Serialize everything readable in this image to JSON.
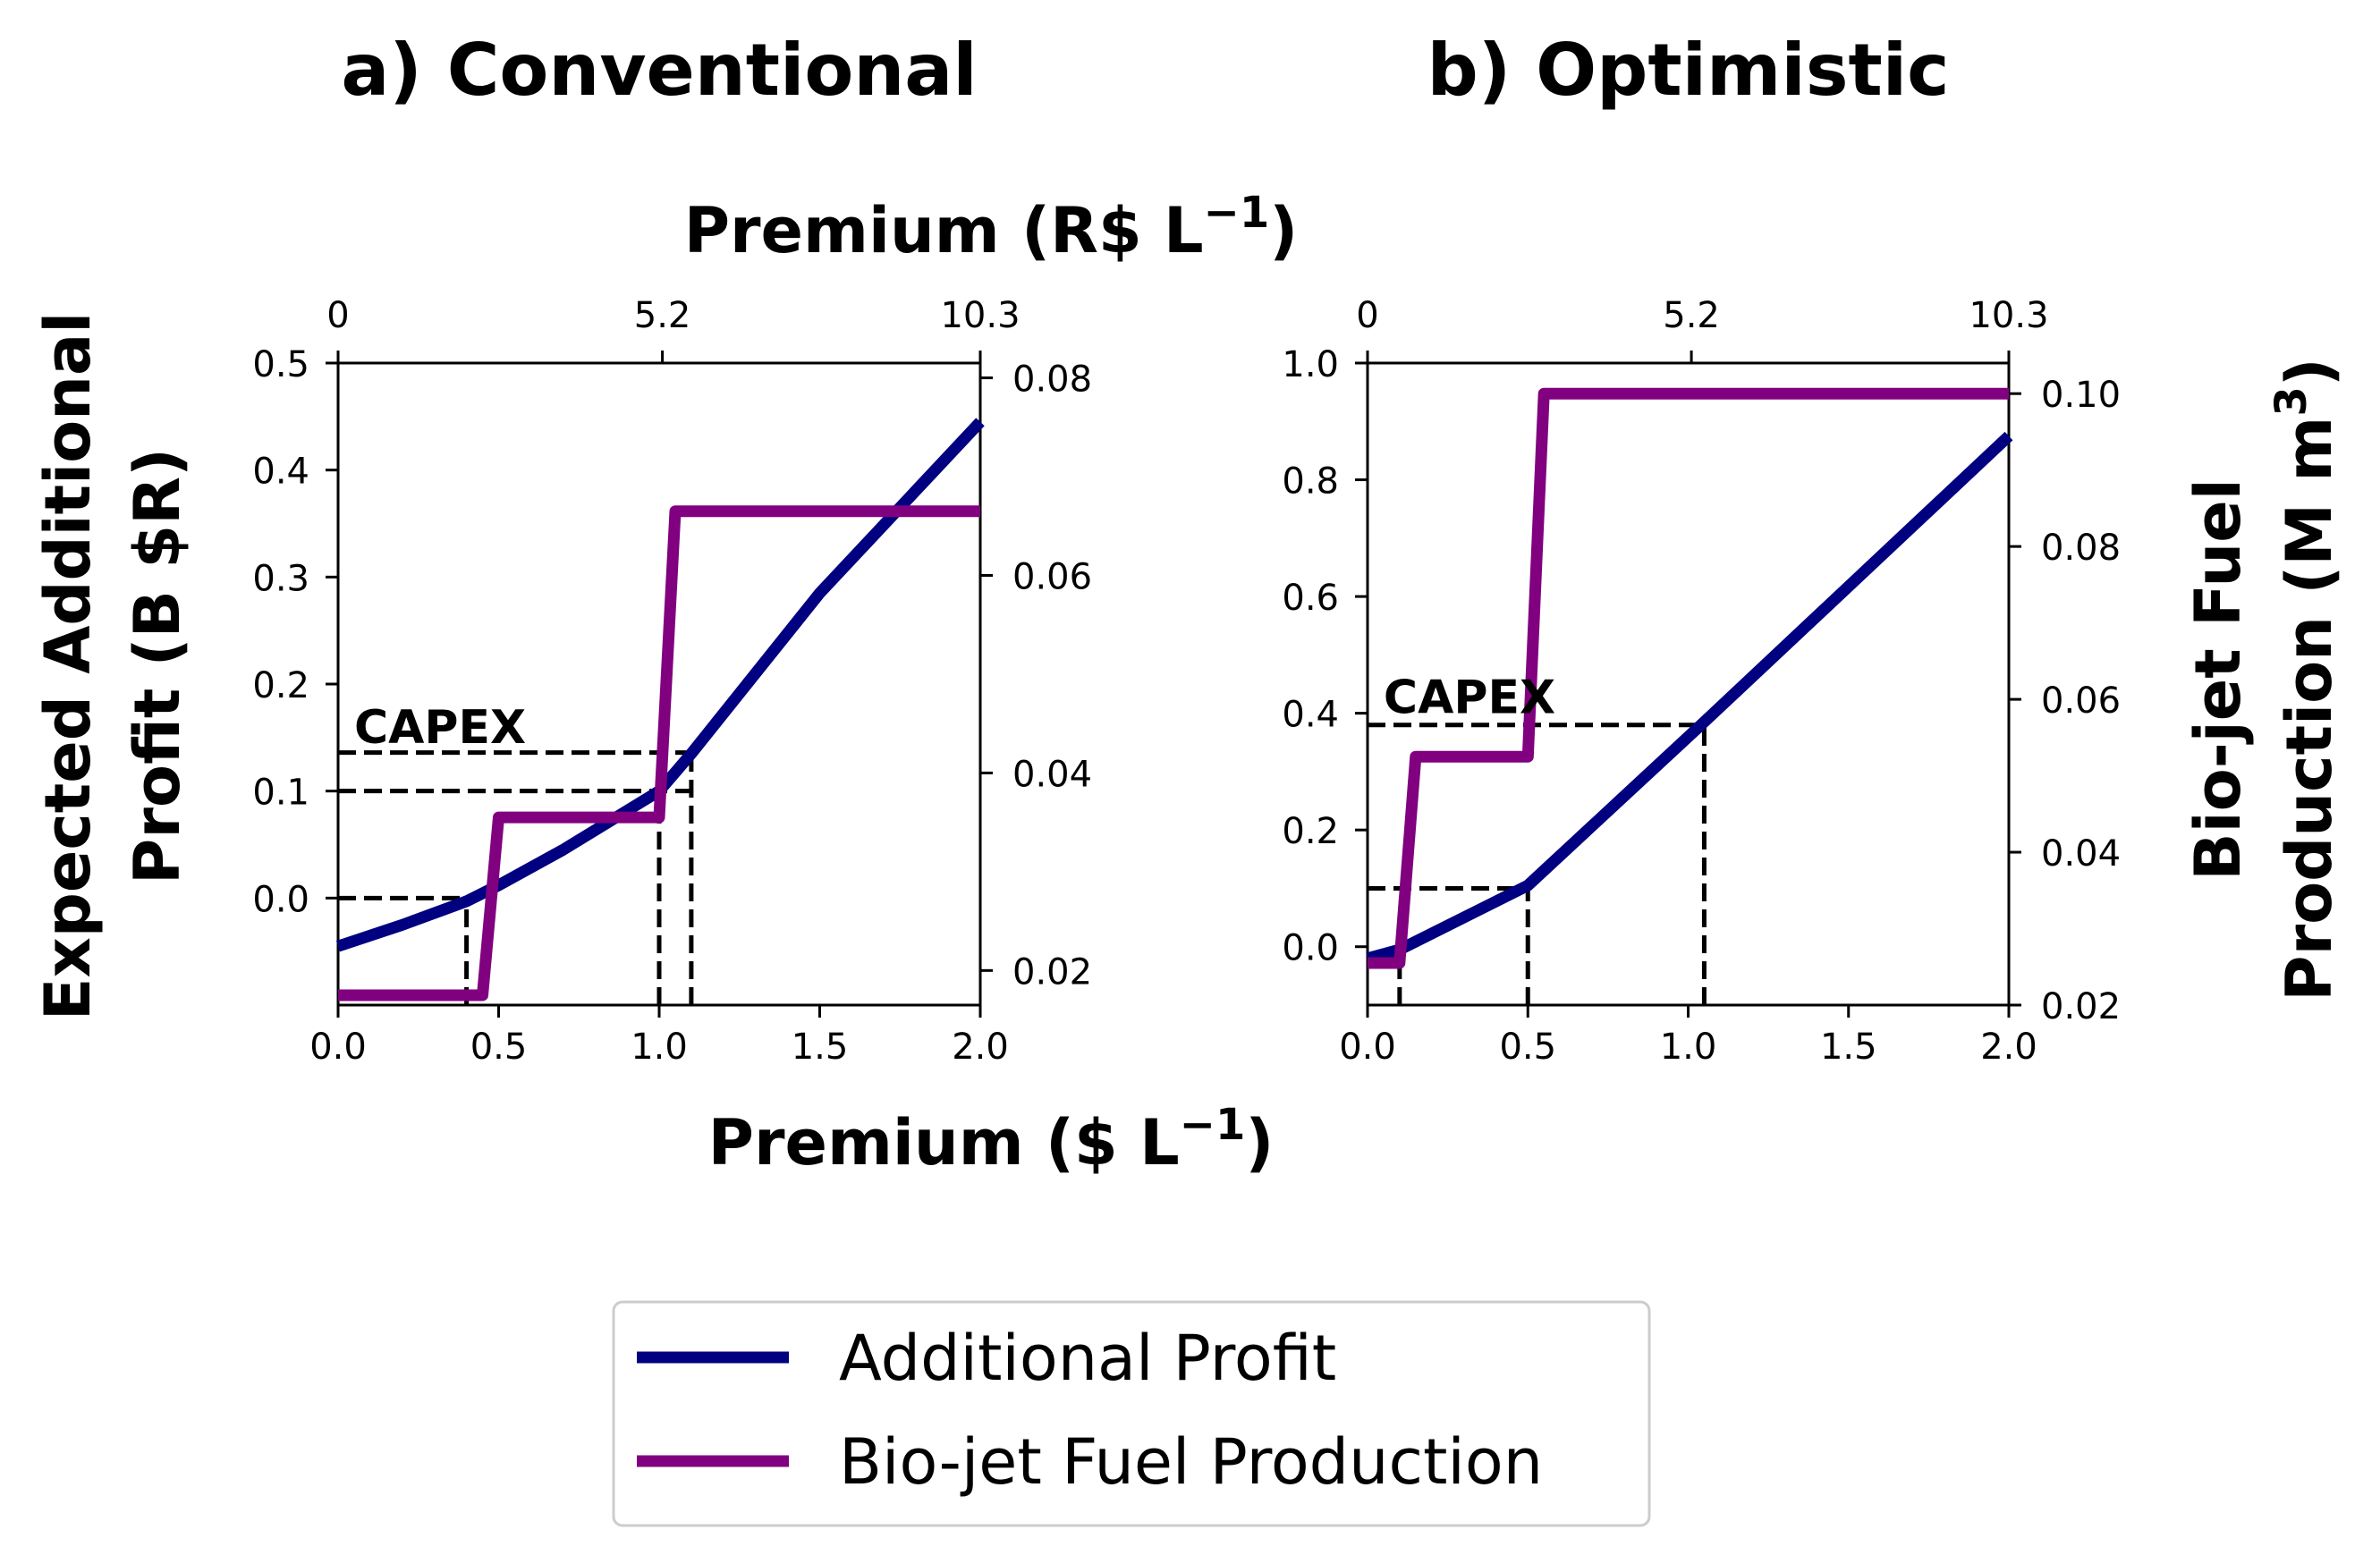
{
  "chart_data": [
    {
      "type": "line",
      "title": "a) Conventional",
      "xlabel": "Premium ($ L⁻¹)",
      "ylabel": "Expected Additional Profit (B $R)",
      "xlim": [
        0,
        2
      ],
      "ylim_left": [
        -0.1,
        0.5
      ],
      "ylim_right": [
        0.0165,
        0.0815
      ],
      "x_ticks": [
        "0.0",
        "0.5",
        "1.0",
        "1.5",
        "2.0"
      ],
      "y_left_ticks": [
        "0.0",
        "0.1",
        "0.2",
        "0.3",
        "0.4",
        "0.5"
      ],
      "y_right_ticks": [
        "0.02",
        "0.04",
        "0.06",
        "0.08"
      ],
      "top_axis": {
        "label": "Premium (R$ L⁻¹)",
        "tick_positions": [
          0,
          1.01,
          2
        ],
        "tick_labels": [
          "0",
          "5.2",
          "10.3"
        ]
      },
      "series": [
        {
          "name": "Additional Profit",
          "axis": "left",
          "x": [
            0,
            0.2,
            0.4,
            0.5,
            0.7,
            1.0,
            1.1,
            1.5,
            2.0
          ],
          "y": [
            -0.045,
            -0.025,
            -0.003,
            0.012,
            0.045,
            0.1,
            0.135,
            0.285,
            0.445
          ]
        },
        {
          "name": "Bio-jet Fuel Production",
          "axis": "right",
          "x": [
            0,
            0.45,
            0.5,
            1.0,
            1.05,
            2.0
          ],
          "y": [
            0.0175,
            0.0175,
            0.0355,
            0.0355,
            0.0665,
            0.0665
          ]
        }
      ],
      "annotations": [
        {
          "text": "CAPEX",
          "x": 0.05,
          "y": 0.145
        }
      ],
      "reference_lines": [
        {
          "type": "h",
          "y": 0.0,
          "x_from": 0,
          "x_to": 0.4
        },
        {
          "type": "h",
          "y": 0.1,
          "x_from": 0,
          "x_to": 1.1
        },
        {
          "type": "h",
          "y": 0.136,
          "x_from": 0,
          "x_to": 1.1
        },
        {
          "type": "v",
          "x": 0.4,
          "y_from": -0.1,
          "y_to": 0.0
        },
        {
          "type": "v",
          "x": 1.0,
          "y_from": -0.1,
          "y_to": 0.1
        },
        {
          "type": "v",
          "x": 1.1,
          "y_from": -0.1,
          "y_to": 0.136
        }
      ]
    },
    {
      "type": "line",
      "title": "b) Optimistic",
      "xlabel": "Premium ($ L⁻¹)",
      "ylabel": "Bio-jet Fuel Production (M m³)",
      "xlim": [
        0,
        2
      ],
      "ylim_left": [
        -0.1,
        1.0
      ],
      "ylim_right": [
        0.02,
        0.104
      ],
      "x_ticks": [
        "0.0",
        "0.5",
        "1.0",
        "1.5",
        "2.0"
      ],
      "y_left_ticks": [
        "0.0",
        "0.2",
        "0.4",
        "0.6",
        "0.8",
        "1.0"
      ],
      "y_right_ticks": [
        "0.02",
        "0.04",
        "0.06",
        "0.08",
        "0.10"
      ],
      "top_axis": {
        "label": "Premium (R$ L⁻¹)",
        "tick_positions": [
          0,
          1.01,
          2
        ],
        "tick_labels": [
          "0",
          "5.2",
          "10.3"
        ]
      },
      "series": [
        {
          "name": "Additional Profit",
          "axis": "left",
          "x": [
            0,
            0.1,
            0.5,
            1.05,
            2.0
          ],
          "y": [
            -0.02,
            -0.005,
            0.105,
            0.385,
            0.875
          ]
        },
        {
          "name": "Bio-jet Fuel Production",
          "axis": "right",
          "x": [
            0,
            0.1,
            0.15,
            0.5,
            0.55,
            2.0
          ],
          "y": [
            0.0255,
            0.0255,
            0.0525,
            0.0525,
            0.1,
            0.1
          ]
        }
      ],
      "annotations": [
        {
          "text": "CAPEX",
          "x": 0.05,
          "y": 0.4
        }
      ],
      "reference_lines": [
        {
          "type": "h",
          "y": 0.1,
          "x_from": 0,
          "x_to": 0.5
        },
        {
          "type": "h",
          "y": 0.38,
          "x_from": 0,
          "x_to": 1.05
        },
        {
          "type": "v",
          "x": 0.1,
          "y_from": -0.1,
          "y_to": 0.0
        },
        {
          "type": "v",
          "x": 0.5,
          "y_from": -0.1,
          "y_to": 0.1
        },
        {
          "type": "v",
          "x": 1.05,
          "y_from": -0.1,
          "y_to": 0.38
        }
      ]
    }
  ],
  "shared_labels": {
    "top_xlabel": "Premium (R$ L",
    "top_xlabel_sup": "−1",
    "top_xlabel_close": ")",
    "bottom_xlabel": "Premium ($ L",
    "bottom_xlabel_sup": "−1",
    "bottom_xlabel_close": ")",
    "left_ylabel_line1": "Expected Additional",
    "left_ylabel_line2": "Profit (B $R)",
    "right_ylabel_line1": "Bio-jet Fuel",
    "right_ylabel_line2": "Production (M m",
    "right_ylabel_sup": "3",
    "right_ylabel_close": ")"
  },
  "legend": {
    "placement": "bottom-center",
    "items": [
      {
        "label": "Additional Profit",
        "color": "#000080"
      },
      {
        "label": "Bio-jet Fuel Production",
        "color": "#800080"
      }
    ]
  },
  "colors": {
    "profit": "#000080",
    "production": "#800080",
    "reference": "#000000"
  }
}
